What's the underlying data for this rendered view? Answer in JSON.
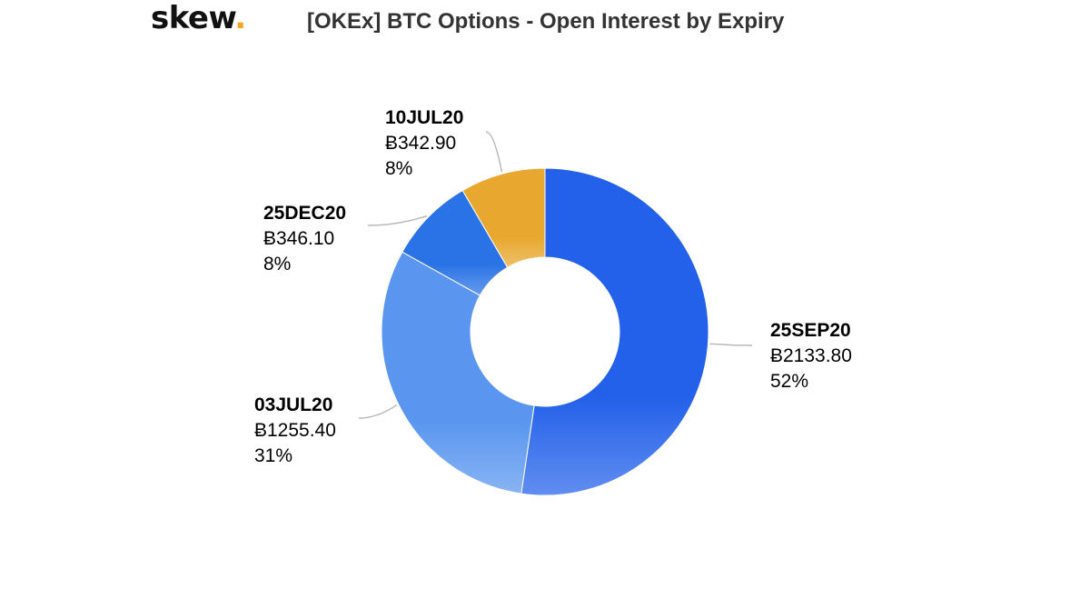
{
  "logo": {
    "text": "skew",
    "dot": "."
  },
  "title": "[OKEx] BTC Options - Open Interest by Expiry",
  "chart_data": {
    "type": "pie",
    "variant": "donut",
    "title": "[OKEx] BTC Options - Open Interest by Expiry",
    "currency_symbol": "Ƀ",
    "slices": [
      {
        "label": "25SEP20",
        "value_text": "Ƀ2133.80",
        "value": 2133.8,
        "percent_text": "52%",
        "percent": 52,
        "color": "#2361ea"
      },
      {
        "label": "03JUL20",
        "value_text": "Ƀ1255.40",
        "value": 1255.4,
        "percent_text": "31%",
        "percent": 31,
        "color": "#5a96ef"
      },
      {
        "label": "25DEC20",
        "value_text": "Ƀ346.10",
        "value": 346.1,
        "percent_text": "8%",
        "percent": 8,
        "color": "#2a73e6"
      },
      {
        "label": "10JUL20",
        "value_text": "Ƀ342.90",
        "value": 342.9,
        "percent_text": "8%",
        "percent": 8,
        "color": "#e8a830"
      }
    ]
  }
}
